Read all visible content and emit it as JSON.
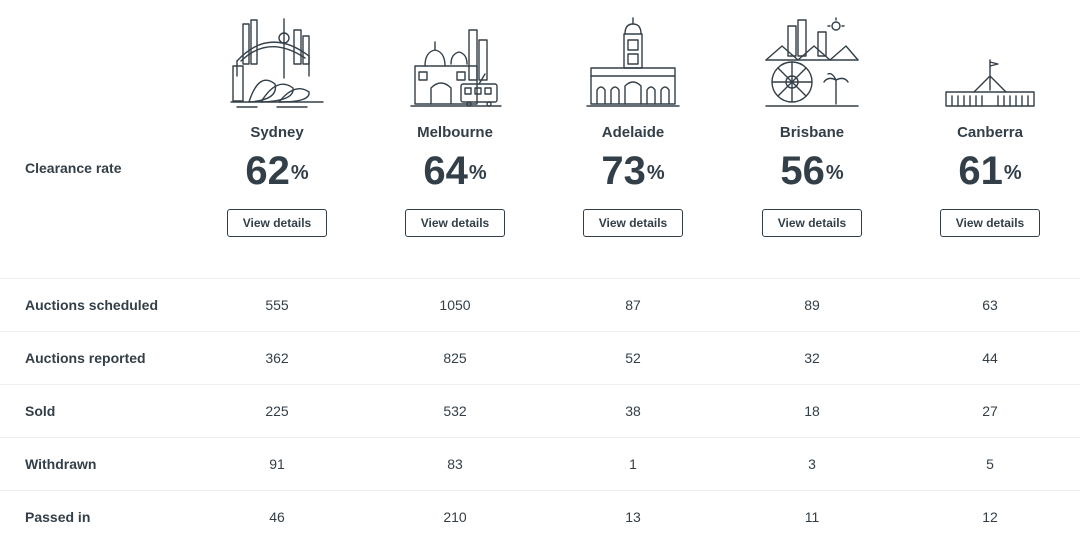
{
  "header_row": {
    "label": "Clearance rate"
  },
  "cities": [
    {
      "name": "Sydney",
      "rate": "62",
      "pct": "%",
      "button": "View details",
      "icon": "sydney-skyline-icon"
    },
    {
      "name": "Melbourne",
      "rate": "64",
      "pct": "%",
      "button": "View details",
      "icon": "melbourne-skyline-icon"
    },
    {
      "name": "Adelaide",
      "rate": "73",
      "pct": "%",
      "button": "View details",
      "icon": "adelaide-skyline-icon"
    },
    {
      "name": "Brisbane",
      "rate": "56",
      "pct": "%",
      "button": "View details",
      "icon": "brisbane-skyline-icon"
    },
    {
      "name": "Canberra",
      "rate": "61",
      "pct": "%",
      "button": "View details",
      "icon": "canberra-skyline-icon"
    }
  ],
  "rows": [
    {
      "label": "Auctions scheduled",
      "values": [
        "555",
        "1050",
        "87",
        "89",
        "63"
      ]
    },
    {
      "label": "Auctions reported",
      "values": [
        "362",
        "825",
        "52",
        "32",
        "44"
      ]
    },
    {
      "label": "Sold",
      "values": [
        "225",
        "532",
        "38",
        "18",
        "27"
      ]
    },
    {
      "label": "Withdrawn",
      "values": [
        "91",
        "83",
        "1",
        "3",
        "5"
      ]
    },
    {
      "label": "Passed in",
      "values": [
        "46",
        "210",
        "13",
        "11",
        "12"
      ]
    }
  ],
  "colors": {
    "text": "#333f48",
    "divider": "#edf0f2",
    "button_border": "#333f48"
  }
}
